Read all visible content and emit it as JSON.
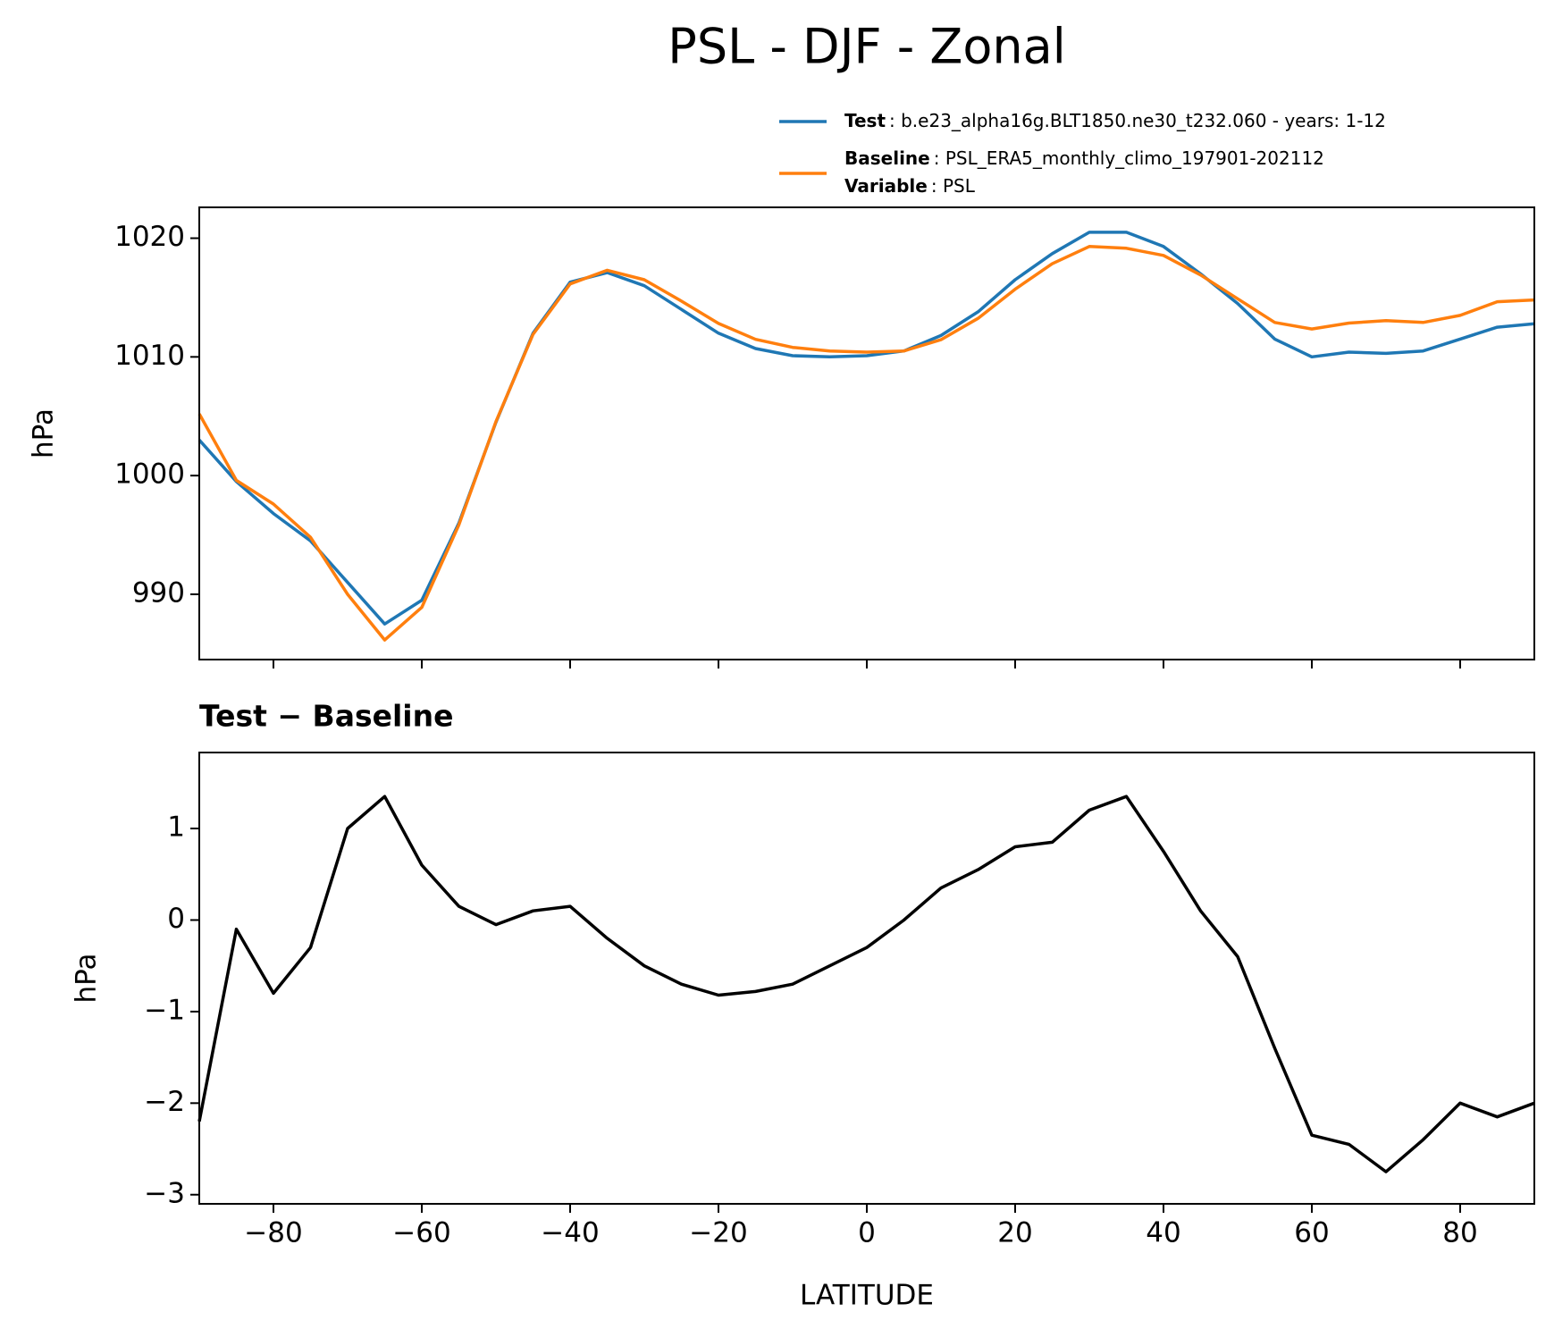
{
  "title": "PSL - DJF - Zonal",
  "chart_data": [
    {
      "type": "line",
      "ylabel": "hPa",
      "show_xtick_labels": false,
      "x": [
        -90,
        -85,
        -80,
        -75,
        -70,
        -65,
        -60,
        -55,
        -50,
        -45,
        -40,
        -35,
        -30,
        -25,
        -20,
        -15,
        -10,
        -5,
        0,
        5,
        10,
        15,
        20,
        25,
        30,
        35,
        40,
        45,
        50,
        55,
        60,
        65,
        70,
        75,
        80,
        85,
        90
      ],
      "series": [
        {
          "name": "Test",
          "description": ": b.e23_alpha16g.BLT1850.ne30_t232.060 - years: 1-12",
          "color": "#1f77b4",
          "values": [
            1003.0,
            999.5,
            996.8,
            994.5,
            991,
            987.5,
            989.5,
            996,
            1004.5,
            1012,
            1016.3,
            1017.1,
            1016,
            1014,
            1012,
            1010.7,
            1010.1,
            1010.0,
            1010.1,
            1010.5,
            1011.8,
            1013.8,
            1016.5,
            1018.7,
            1020.5,
            1020.5,
            1019.3,
            1017,
            1014.5,
            1011.5,
            1010,
            1010.4,
            1010.3,
            1010.5,
            1011.5,
            1012.5,
            1012.8
          ]
        },
        {
          "name": "Baseline",
          "description": ": PSL_ERA5_monthly_climo_197901-202112",
          "extra_label": "Variable",
          "extra_description": ": PSL",
          "color": "#ff7f0e",
          "values": [
            1005.2,
            999.6,
            997.6,
            994.8,
            990,
            986.15,
            988.9,
            995.85,
            1004.55,
            1011.9,
            1016.15,
            1017.3,
            1016.5,
            1014.7,
            1012.82,
            1011.48,
            1010.8,
            1010.5,
            1010.4,
            1010.5,
            1011.45,
            1013.25,
            1015.7,
            1017.85,
            1019.3,
            1019.15,
            1018.55,
            1016.9,
            1014.9,
            1012.9,
            1012.35,
            1012.85,
            1013.05,
            1012.9,
            1013.5,
            1014.65,
            1014.8
          ]
        }
      ],
      "xlim": [
        -90,
        90
      ],
      "xticks": [
        {
          "value": -80,
          "label": "−80"
        },
        {
          "value": -60,
          "label": "−60"
        },
        {
          "value": -40,
          "label": "−40"
        },
        {
          "value": -20,
          "label": "−20"
        },
        0,
        20,
        40,
        60,
        80
      ],
      "ylim": [
        984.5,
        1022.6
      ],
      "yticks": [
        990,
        1000,
        1010,
        1020
      ],
      "grid": false
    },
    {
      "type": "line",
      "title": "Test − Baseline",
      "xlabel": "LATITUDE",
      "ylabel": "hPa",
      "show_xtick_labels": true,
      "x": [
        -90,
        -85,
        -80,
        -75,
        -70,
        -65,
        -60,
        -55,
        -50,
        -45,
        -40,
        -35,
        -30,
        -25,
        -20,
        -15,
        -10,
        -5,
        0,
        5,
        10,
        15,
        20,
        25,
        30,
        35,
        40,
        45,
        50,
        55,
        60,
        65,
        70,
        75,
        80,
        85,
        90
      ],
      "series": [
        {
          "color": "#000000",
          "values": [
            -2.2,
            -0.1,
            -0.8,
            -0.3,
            1.0,
            1.35,
            0.6,
            0.15,
            -0.05,
            0.1,
            0.15,
            -0.2,
            -0.5,
            -0.7,
            -0.82,
            -0.78,
            -0.7,
            -0.5,
            -0.3,
            0.0,
            0.35,
            0.55,
            0.8,
            0.85,
            1.2,
            1.35,
            0.75,
            0.1,
            -0.4,
            -1.4,
            -2.35,
            -2.45,
            -2.75,
            -2.4,
            -2.0,
            -2.15,
            -2.0
          ]
        }
      ],
      "xlim": [
        -90,
        90
      ],
      "xticks": [
        {
          "value": -80,
          "label": "−80"
        },
        {
          "value": -60,
          "label": "−60"
        },
        {
          "value": -40,
          "label": "−40"
        },
        {
          "value": -20,
          "label": "−20"
        },
        0,
        20,
        40,
        60,
        80
      ],
      "ylim": [
        -3.1,
        1.83
      ],
      "yticks": [
        {
          "value": -3,
          "label": "−3"
        },
        {
          "value": -2,
          "label": "−2"
        },
        {
          "value": -1,
          "label": "−1"
        },
        0,
        1
      ],
      "grid": false
    }
  ]
}
